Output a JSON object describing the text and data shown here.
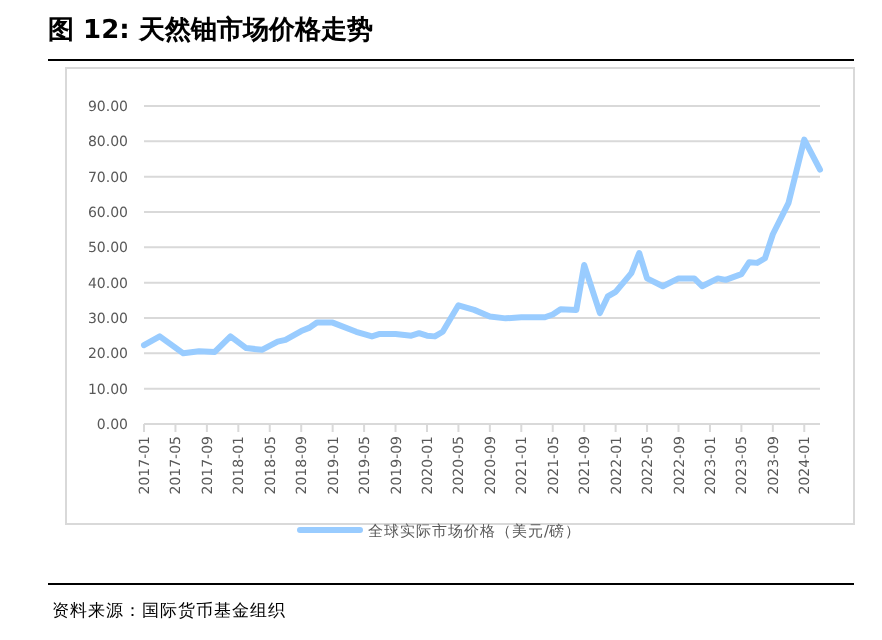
{
  "chart_data": {
    "type": "line",
    "title": "图 12:  天然铀市场价格走势",
    "annotations": [
      "资料来源：国际货币基金组织"
    ],
    "legend": "bottom",
    "grid": "y",
    "marker": "none",
    "line_style": "solid",
    "ylim": [
      0,
      90
    ],
    "yticks": [
      {
        "value": 0,
        "label": "0.00"
      },
      {
        "value": 10,
        "label": "10.00"
      },
      {
        "value": 20,
        "label": "20.00"
      },
      {
        "value": 30,
        "label": "30.00"
      },
      {
        "value": 40,
        "label": "40.00"
      },
      {
        "value": 50,
        "label": "50.00"
      },
      {
        "value": 60,
        "label": "60.00"
      },
      {
        "value": 70,
        "label": "70.00"
      },
      {
        "value": 80,
        "label": "80.00"
      },
      {
        "value": 90,
        "label": "90.00"
      }
    ],
    "xlim": [
      "2017-01",
      "2024-03"
    ],
    "xticks": [
      {
        "value": "2017-01",
        "label": "2017-01"
      },
      {
        "value": "2017-05",
        "label": "2017-05"
      },
      {
        "value": "2017-09",
        "label": "2017-09"
      },
      {
        "value": "2018-01",
        "label": "2018-01"
      },
      {
        "value": "2018-05",
        "label": "2018-05"
      },
      {
        "value": "2018-09",
        "label": "2018-09"
      },
      {
        "value": "2019-01",
        "label": "2019-01"
      },
      {
        "value": "2019-05",
        "label": "2019-05"
      },
      {
        "value": "2019-09",
        "label": "2019-09"
      },
      {
        "value": "2020-01",
        "label": "2020-01"
      },
      {
        "value": "2020-05",
        "label": "2020-05"
      },
      {
        "value": "2020-09",
        "label": "2020-09"
      },
      {
        "value": "2021-01",
        "label": "2021-01"
      },
      {
        "value": "2021-05",
        "label": "2021-05"
      },
      {
        "value": "2021-09",
        "label": "2021-09"
      },
      {
        "value": "2022-01",
        "label": "2022-01"
      },
      {
        "value": "2022-05",
        "label": "2022-05"
      },
      {
        "value": "2022-09",
        "label": "2022-09"
      },
      {
        "value": "2023-01",
        "label": "2023-01"
      },
      {
        "value": "2023-05",
        "label": "2023-05"
      },
      {
        "value": "2023-09",
        "label": "2023-09"
      },
      {
        "value": "2024-01",
        "label": "2024-01"
      }
    ],
    "series": [
      {
        "name": "全球实际市场价格（美元/磅）",
        "color": "#99ccff",
        "x": [
          "2017-01",
          "2017-03",
          "2017-06",
          "2017-08",
          "2017-10",
          "2017-12",
          "2018-02",
          "2018-04",
          "2018-06",
          "2018-07",
          "2018-09",
          "2018-10",
          "2018-11",
          "2019-01",
          "2019-04",
          "2019-06",
          "2019-07",
          "2019-09",
          "2019-11",
          "2019-12",
          "2020-01",
          "2020-02",
          "2020-03",
          "2020-05",
          "2020-07",
          "2020-09",
          "2020-11",
          "2021-01",
          "2021-04",
          "2021-05",
          "2021-06",
          "2021-08",
          "2021-09",
          "2021-11",
          "2021-12",
          "2022-01",
          "2022-03",
          "2022-04",
          "2022-05",
          "2022-07",
          "2022-09",
          "2022-11",
          "2022-12",
          "2023-02",
          "2023-03",
          "2023-05",
          "2023-06",
          "2023-07",
          "2023-08",
          "2023-09",
          "2023-11",
          "2024-01",
          "2024-03"
        ],
        "values": [
          22.3,
          24.8,
          20,
          20.6,
          20.4,
          24.8,
          21.5,
          21,
          23.3,
          23.8,
          26.3,
          27.2,
          28.7,
          28.7,
          26.1,
          24.8,
          25.5,
          25.5,
          25,
          25.7,
          25,
          24.8,
          26.1,
          33.6,
          32.3,
          30.4,
          29.9,
          30.2,
          30.2,
          31,
          32.5,
          32.3,
          45,
          31.4,
          36.1,
          37.4,
          42.7,
          48.4,
          41.2,
          39,
          41.2,
          41.2,
          39,
          41.2,
          40.8,
          42.4,
          45.8,
          45.6,
          46.9,
          53.7,
          62.6,
          80.5,
          72
        ]
      }
    ]
  }
}
